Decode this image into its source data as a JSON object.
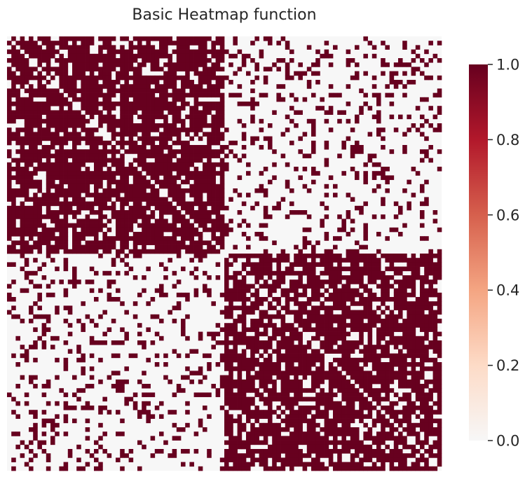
{
  "chart_data": {
    "type": "heatmap",
    "title": "Basic Heatmap function",
    "xlabel": "",
    "ylabel": "",
    "rows": 100,
    "cols": 100,
    "value_range": [
      0,
      1
    ],
    "values_description": "binary adjacency matrix, two diagonal blocks of 50 nodes",
    "block_structure": {
      "block_size": 50,
      "within_block_density": 0.8,
      "between_block_density": 0.2,
      "diagonal_value": 0,
      "seed": 7
    },
    "colorbar": {
      "ticks": [
        0.0,
        0.2,
        0.4,
        0.6,
        0.8,
        1.0
      ],
      "tick_labels": [
        "0.0",
        "0.2",
        "0.4",
        "0.6",
        "0.8",
        "1.0"
      ],
      "colormap": "RdBu_r (0 to 1 half)",
      "low_color": "#f7f7f7",
      "high_color": "#67001f"
    }
  }
}
